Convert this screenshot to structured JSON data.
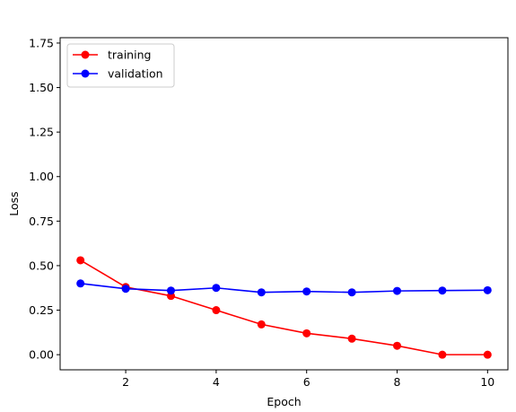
{
  "chart_data": {
    "type": "line",
    "xlabel": "Epoch",
    "ylabel": "Loss",
    "x": [
      1,
      2,
      3,
      4,
      5,
      6,
      7,
      8,
      9,
      10
    ],
    "xlim": [
      0.55,
      10.45
    ],
    "ylim": [
      -0.085,
      1.78
    ],
    "xticks": [
      2,
      4,
      6,
      8,
      10
    ],
    "xtick_labels": [
      "2",
      "4",
      "6",
      "8",
      "10"
    ],
    "yticks": [
      0.0,
      0.25,
      0.5,
      0.75,
      1.0,
      1.25,
      1.5,
      1.75
    ],
    "ytick_labels": [
      "0.00",
      "0.25",
      "0.50",
      "0.75",
      "1.00",
      "1.25",
      "1.50",
      "1.75"
    ],
    "grid": false,
    "legend_position": "upper-left",
    "series": [
      {
        "name": "training",
        "color": "#ff0000",
        "marker": "circle",
        "values": [
          0.53,
          0.38,
          0.33,
          0.25,
          0.17,
          0.12,
          0.09,
          0.05,
          0.0,
          0.0
        ]
      },
      {
        "name": "validation",
        "color": "#0000ff",
        "marker": "circle",
        "values": [
          0.4,
          0.37,
          0.36,
          0.375,
          0.35,
          0.355,
          0.35,
          0.358,
          0.36,
          0.362
        ]
      }
    ]
  }
}
